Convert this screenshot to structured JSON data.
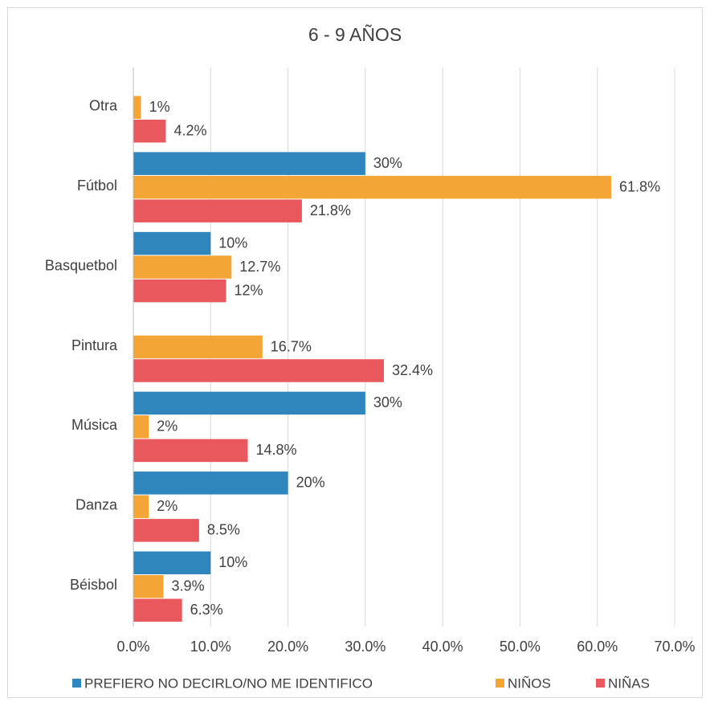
{
  "chart_data": {
    "type": "bar",
    "orientation": "horizontal",
    "title": "6  - 9 AÑOS",
    "categories": [
      "Otra",
      "Fútbol",
      "Basquetbol",
      "Pintura",
      "Música",
      "Danza",
      "Béisbol"
    ],
    "series": [
      {
        "name": "PREFIERO NO DECIRLO/NO ME IDENTIFICO",
        "color": "#2e86bd",
        "values": [
          null,
          30,
          10,
          null,
          30,
          20,
          10
        ],
        "value_labels": [
          null,
          "30%",
          "10%",
          null,
          "30%",
          "20%",
          "10%"
        ]
      },
      {
        "name": "NIÑOS",
        "color": "#f3a535",
        "values": [
          1,
          61.8,
          12.7,
          16.7,
          2,
          2,
          3.9
        ],
        "value_labels": [
          "1%",
          "61.8%",
          "12.7%",
          "16.7%",
          "2%",
          "2%",
          "3.9%"
        ]
      },
      {
        "name": "NIÑAS",
        "color": "#e8585c",
        "values": [
          4.2,
          21.8,
          12,
          32.4,
          14.8,
          8.5,
          6.3
        ],
        "value_labels": [
          "4.2%",
          "21.8%",
          "12%",
          "32.4%",
          "14.8%",
          "8.5%",
          "6.3%"
        ]
      }
    ],
    "xlim": [
      0,
      70
    ],
    "xticks": [
      {
        "value": 0,
        "label": "0.0%"
      },
      {
        "value": 10,
        "label": "10.0%"
      },
      {
        "value": 20,
        "label": "20.0%"
      },
      {
        "value": 30,
        "label": "30.0%"
      },
      {
        "value": 40,
        "label": "40.0%"
      },
      {
        "value": 50,
        "label": "50.0%"
      },
      {
        "value": 60,
        "label": "60.0%"
      },
      {
        "value": 70,
        "label": "70.0%"
      }
    ],
    "grid": true,
    "legend": "bottom"
  }
}
